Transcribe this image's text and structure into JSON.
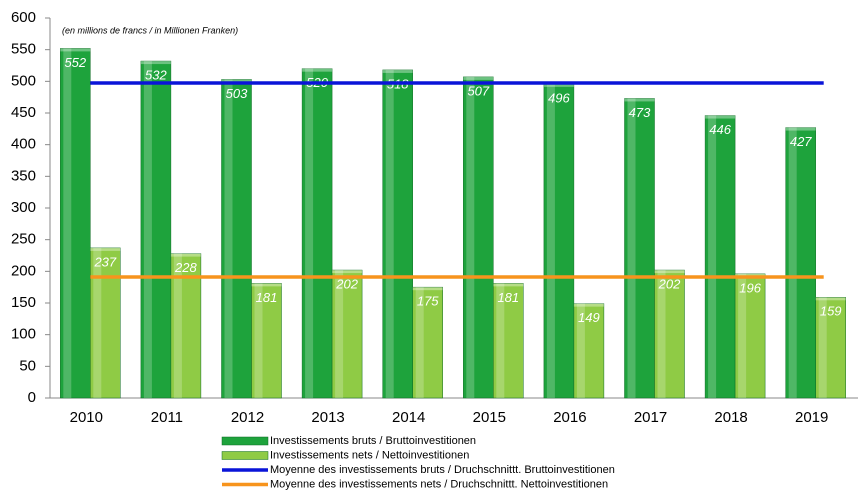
{
  "chart_data": {
    "type": "bar",
    "subtitle": "(en millions de francs / in Millionen Franken)",
    "categories": [
      "2010",
      "2011",
      "2012",
      "2013",
      "2014",
      "2015",
      "2016",
      "2017",
      "2018",
      "2019"
    ],
    "series": [
      {
        "name": "Investissements bruts / Bruttoinvestitionen",
        "color": "#1ea33c",
        "values": [
          552,
          532,
          503,
          520,
          518,
          507,
          496,
          473,
          446,
          427
        ]
      },
      {
        "name": "Investissements nets / Nettoinvestitionen",
        "color": "#8fcb45",
        "values": [
          237,
          228,
          181,
          202,
          175,
          181,
          149,
          202,
          196,
          159
        ]
      },
      {
        "name": "Moyenne des investissements bruts / Druchschnittt. Bruttoinvestitionen",
        "type": "hline",
        "color": "#0a14d8",
        "value": 497.4
      },
      {
        "name": "Moyenne des investissements nets / Druchschnittt. Nettoinvestitionen",
        "type": "hline",
        "color": "#f7941d",
        "value": 191
      }
    ],
    "ylim": [
      0,
      600
    ],
    "yticks": [
      0,
      50,
      100,
      150,
      200,
      250,
      300,
      350,
      400,
      450,
      500,
      550,
      600
    ],
    "grid": false
  }
}
